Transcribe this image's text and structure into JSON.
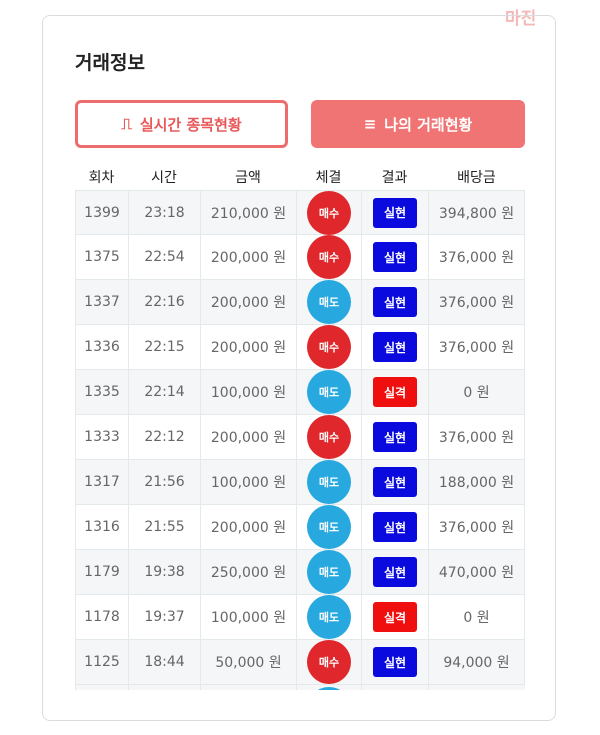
{
  "watermark": "마진",
  "header": {
    "title": "거래정보"
  },
  "buttons": [
    "실시간 종목현황",
    "나의 거래현황"
  ],
  "table": {
    "columns": [
      "회차",
      "시간",
      "금액",
      "체결",
      "결과",
      "배당금"
    ],
    "rows": [
      [
        "1399",
        "23:18",
        "210,000 원",
        "매수",
        "실현",
        "394,800 원"
      ],
      [
        "1375",
        "22:54",
        "200,000 원",
        "매수",
        "실현",
        "376,000 원"
      ],
      [
        "1337",
        "22:16",
        "200,000 원",
        "매도",
        "실현",
        "376,000 원"
      ],
      [
        "1336",
        "22:15",
        "200,000 원",
        "매수",
        "실현",
        "376,000 원"
      ],
      [
        "1335",
        "22:14",
        "100,000 원",
        "매도",
        "실격",
        "0 원"
      ],
      [
        "1333",
        "22:12",
        "200,000 원",
        "매수",
        "실현",
        "376,000 원"
      ],
      [
        "1317",
        "21:56",
        "100,000 원",
        "매도",
        "실현",
        "188,000 원"
      ],
      [
        "1316",
        "21:55",
        "200,000 원",
        "매도",
        "실현",
        "376,000 원"
      ],
      [
        "1179",
        "19:38",
        "250,000 원",
        "매도",
        "실현",
        "470,000 원"
      ],
      [
        "1178",
        "19:37",
        "100,000 원",
        "매도",
        "실격",
        "0 원"
      ],
      [
        "1125",
        "18:44",
        "50,000 원",
        "매수",
        "실현",
        "94,000 원"
      ]
    ]
  }
}
